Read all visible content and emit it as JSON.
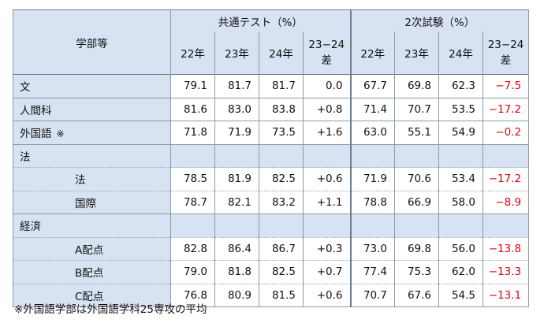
{
  "header": {
    "dept_col": "学部等",
    "group1": "共通テスト（%）",
    "group2": "2次試験（%）",
    "years": [
      "22年",
      "23年",
      "24年"
    ],
    "diff": [
      "23−24",
      "差"
    ]
  },
  "rows": {
    "bun": {
      "label": "文",
      "v": [
        "79.1",
        "81.7",
        "81.7",
        "0.0",
        "67.7",
        "69.8",
        "62.3",
        "−7.5"
      ]
    },
    "ningen": {
      "label": "人間科",
      "v": [
        "81.6",
        "83.0",
        "83.8",
        "+0.8",
        "71.4",
        "70.7",
        "53.5",
        "−17.2"
      ]
    },
    "gaikokugo": {
      "label": "外国語",
      "mark": "※",
      "v": [
        "71.8",
        "71.9",
        "73.5",
        "+1.6",
        "63.0",
        "55.1",
        "54.9",
        "−0.2"
      ]
    },
    "hou_group": {
      "label": "法"
    },
    "hou": {
      "label": "法",
      "v": [
        "78.5",
        "81.9",
        "82.5",
        "+0.6",
        "71.9",
        "70.6",
        "53.4",
        "−17.2"
      ]
    },
    "kokusai": {
      "label": "国際",
      "v": [
        "78.7",
        "82.1",
        "83.2",
        "+1.1",
        "78.8",
        "66.9",
        "58.0",
        "−8.9"
      ]
    },
    "keizai_group": {
      "label": "経済"
    },
    "a": {
      "label": "A配点",
      "v": [
        "82.8",
        "86.4",
        "86.7",
        "+0.3",
        "73.0",
        "69.8",
        "56.0",
        "−13.8"
      ]
    },
    "b": {
      "label": "B配点",
      "v": [
        "79.0",
        "81.8",
        "82.5",
        "+0.7",
        "77.4",
        "75.3",
        "62.0",
        "−13.3"
      ]
    },
    "c": {
      "label": "C配点",
      "v": [
        "76.8",
        "80.9",
        "81.5",
        "+0.6",
        "70.7",
        "67.6",
        "54.5",
        "−13.1"
      ]
    }
  },
  "footnote": "※外国語学部は外国語学科25専攻の平均",
  "colors": {
    "header_bg": "#d7e3f2",
    "negative": "#e3000f"
  }
}
